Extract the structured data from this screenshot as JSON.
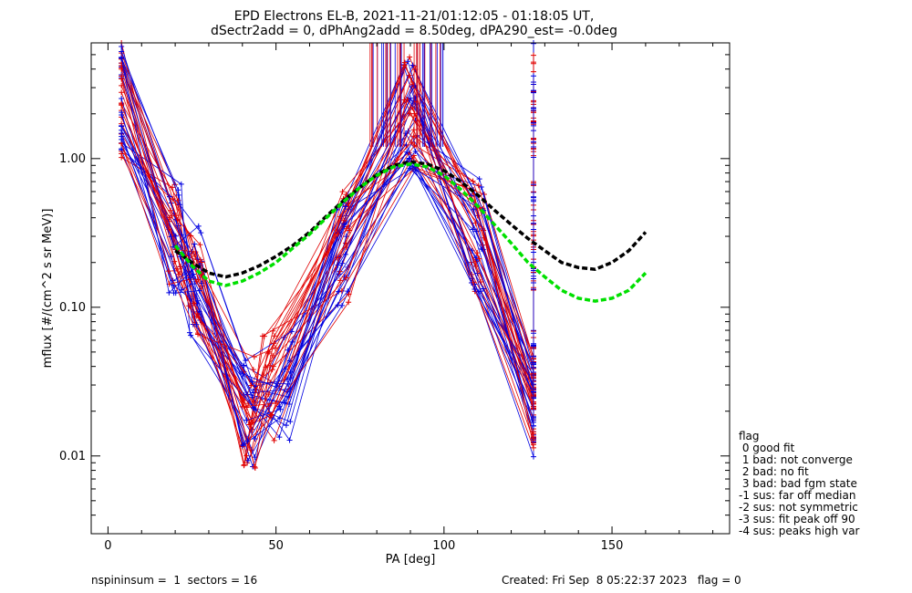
{
  "chart_data": {
    "type": "line",
    "title": "EPD Electrons EL-B, 2021-11-21/01:12:05 - 01:18:05 UT,",
    "subtitle": "dSectr2add = 0, dPhAng2add = 8.50deg, dPA290_est=  -0.0deg",
    "xlabel": "PA [deg]",
    "ylabel": "mflux [#/(cm^2 s sr MeV)]",
    "xlim": [
      -5,
      185
    ],
    "ylim": [
      0.003,
      6
    ],
    "yscale": "log",
    "xticks": [
      0,
      50,
      100,
      150
    ],
    "xtick_labels": [
      "0",
      "50",
      "100",
      "150"
    ],
    "yticks": [
      0.01,
      0.1,
      1.0
    ],
    "ytick_labels": [
      "0.01",
      "0.10",
      "1.00"
    ],
    "colors": {
      "red": "#e00000",
      "blue": "#0000e0",
      "black": "#000000",
      "green": "#00e000"
    },
    "series": [
      {
        "color": "black",
        "style": "dashed",
        "x": [
          20,
          25,
          30,
          35,
          40,
          45,
          50,
          55,
          60,
          65,
          70,
          75,
          80,
          85,
          90,
          95,
          100,
          105,
          110,
          115,
          120,
          125,
          130,
          135,
          140,
          145,
          150,
          155,
          160
        ],
        "y": [
          0.24,
          0.2,
          0.17,
          0.16,
          0.17,
          0.19,
          0.22,
          0.26,
          0.32,
          0.41,
          0.52,
          0.64,
          0.78,
          0.9,
          0.95,
          0.92,
          0.83,
          0.7,
          0.57,
          0.45,
          0.36,
          0.29,
          0.24,
          0.2,
          0.185,
          0.18,
          0.2,
          0.24,
          0.32
        ]
      },
      {
        "color": "green",
        "style": "dashed",
        "x": [
          20,
          25,
          30,
          35,
          40,
          45,
          50,
          55,
          60,
          65,
          70,
          75,
          80,
          85,
          90,
          95,
          100,
          105,
          110,
          115,
          120,
          125,
          130,
          135,
          140,
          145,
          150,
          155,
          160
        ],
        "y": [
          0.26,
          0.19,
          0.15,
          0.14,
          0.15,
          0.17,
          0.2,
          0.25,
          0.31,
          0.4,
          0.51,
          0.64,
          0.77,
          0.88,
          0.92,
          0.88,
          0.77,
          0.62,
          0.48,
          0.36,
          0.27,
          0.2,
          0.16,
          0.13,
          0.115,
          0.11,
          0.115,
          0.13,
          0.17
        ]
      }
    ]
  },
  "legend": {
    "title": "flag",
    "items": [
      " 0 good fit",
      " 1 bad: not converge",
      " 2 bad: no fit",
      " 3 bad: bad fgm state",
      "-1 sus: far off median",
      "-2 sus: not symmetric",
      "-3 sus: fit peak off 90",
      "-4 sus: peaks high var"
    ]
  },
  "footer": {
    "left": "nspininsum =  1  sectors = 16",
    "right": "Created: Fri Sep  8 05:22:37 2023   flag = 0"
  }
}
